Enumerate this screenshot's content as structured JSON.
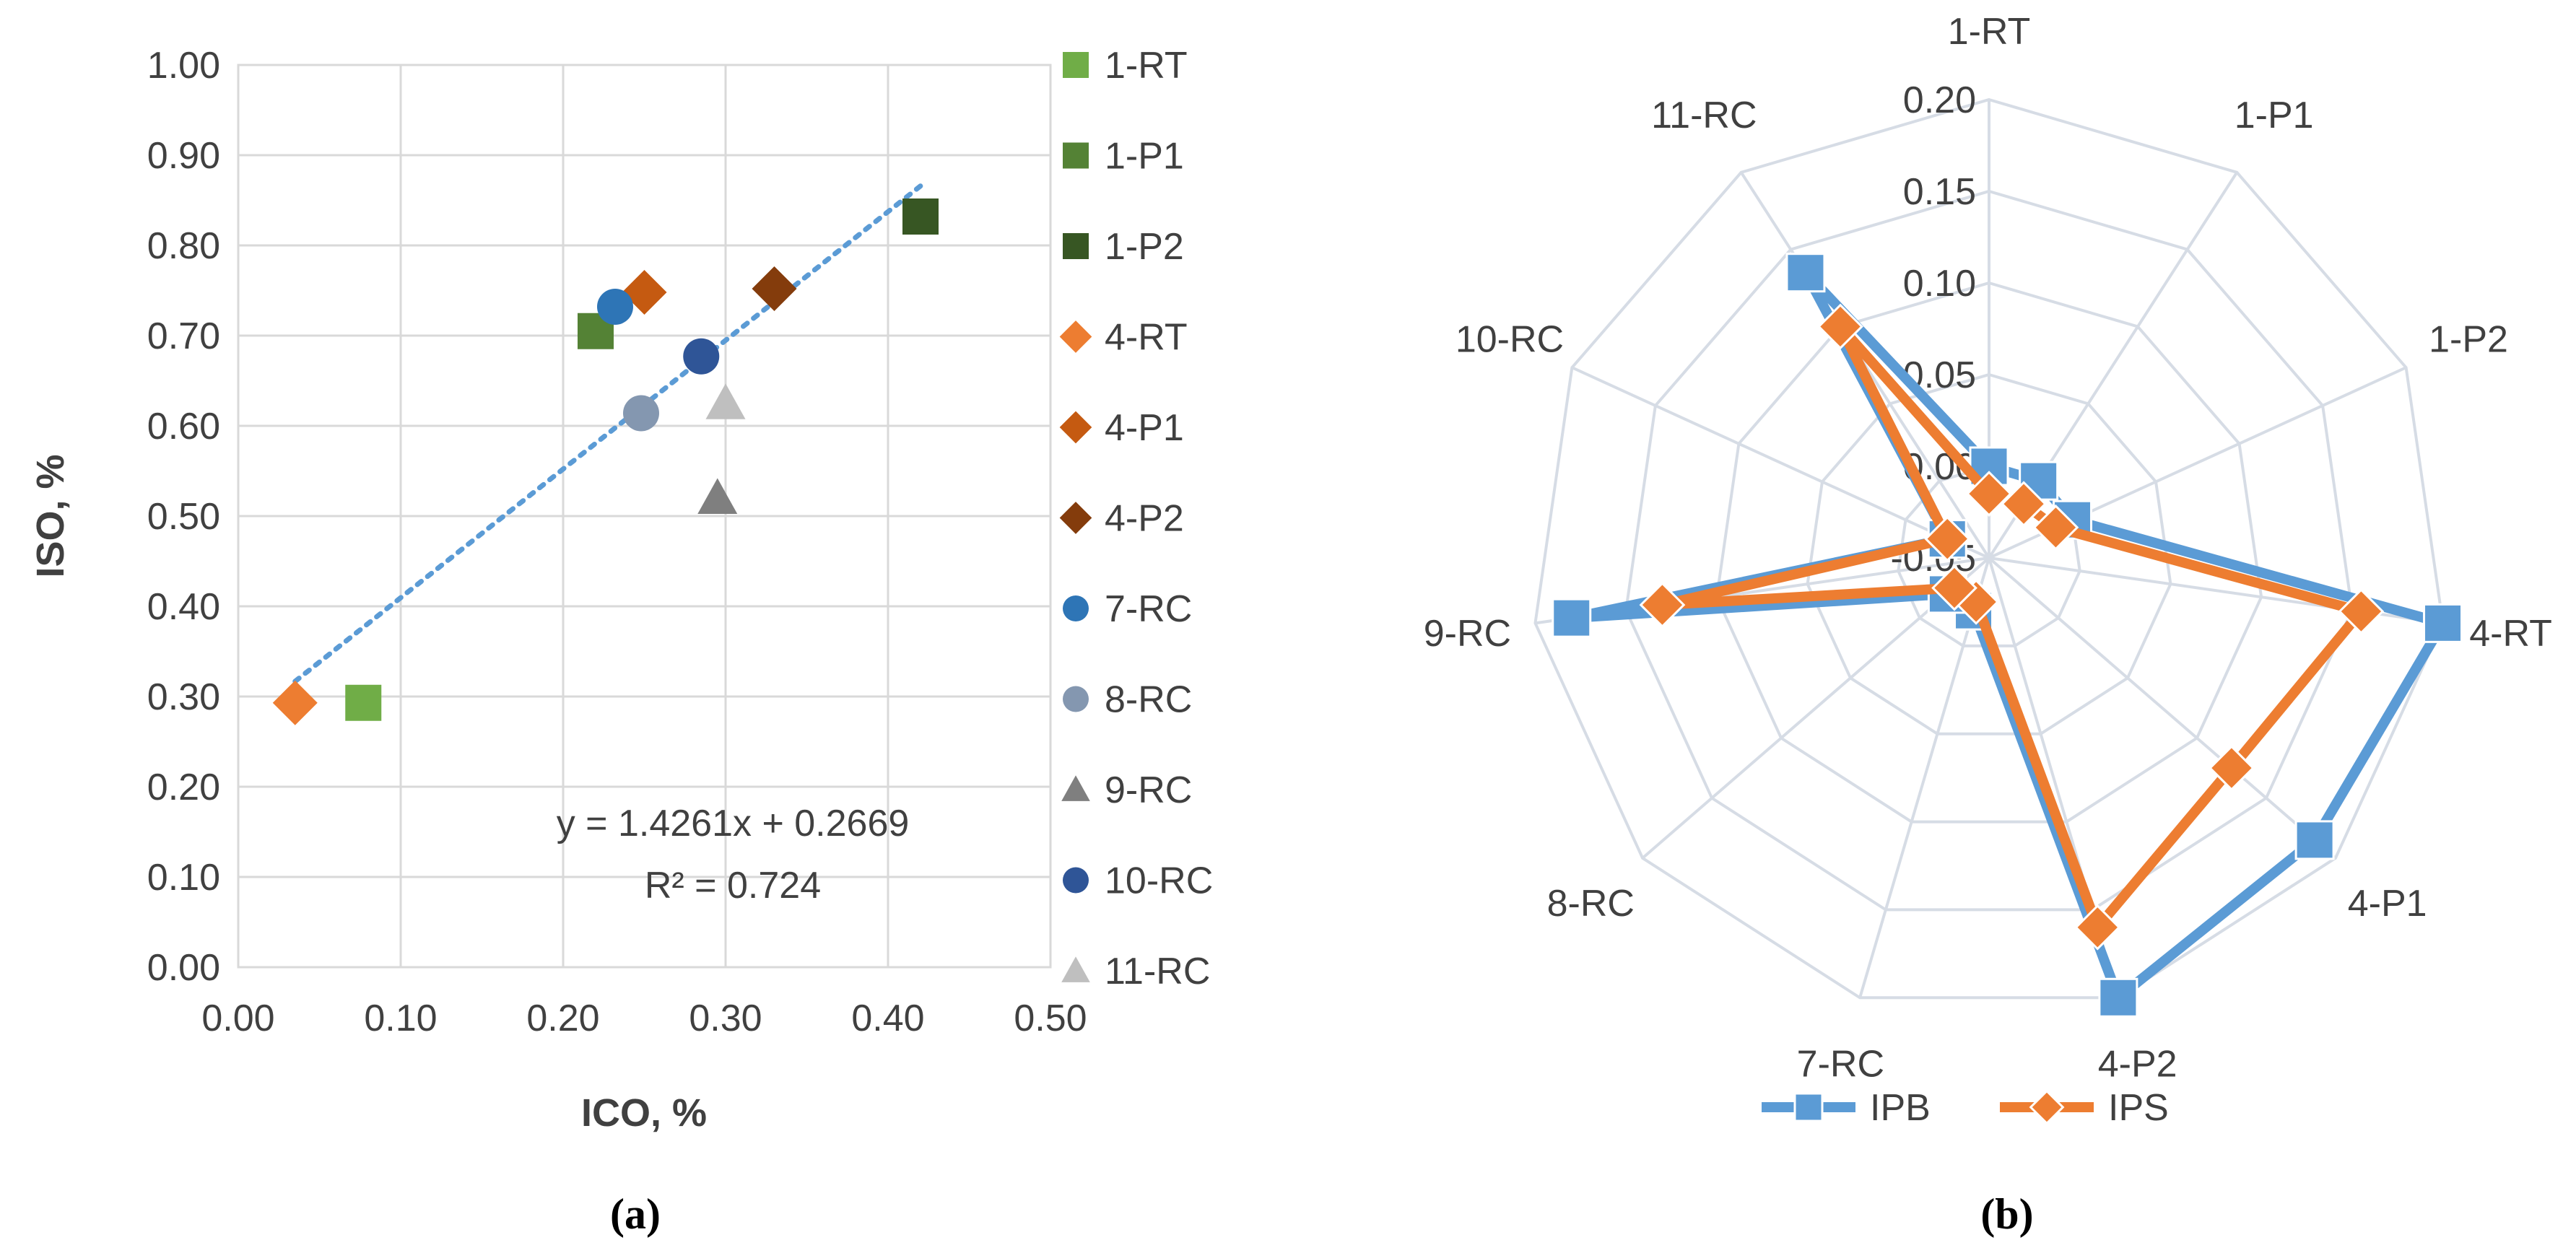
{
  "colors": {
    "c_1_RT": "#70ad47",
    "c_1_P1": "#548235",
    "c_1_P2": "#375623",
    "c_4_RT": "#ed7d31",
    "c_4_P1": "#c55a11",
    "c_4_P2": "#843c0c",
    "c_7_RC": "#2e75b6",
    "c_8_RC": "#8497b0",
    "c_9_RC": "#7f7f7f",
    "c_10_RC": "#2f5597",
    "c_11_RC": "#bfbfbf",
    "trendline": "#5b9bd5",
    "IPB": "#5b9bd5",
    "IPS": "#ed7d31",
    "grid": "#d9d9d9",
    "radar_grid": "#d6dce5"
  },
  "chart_data": [
    {
      "type": "scatter",
      "panel_label": "(a)",
      "xlabel": "ICO, %",
      "ylabel": "ISO, %",
      "xlim": [
        0.0,
        0.5
      ],
      "ylim": [
        0.0,
        1.0
      ],
      "x_ticks": [
        "0.00",
        "0.10",
        "0.20",
        "0.30",
        "0.40",
        "0.50"
      ],
      "y_ticks": [
        "0.00",
        "0.10",
        "0.20",
        "0.30",
        "0.40",
        "0.50",
        "0.60",
        "0.70",
        "0.80",
        "0.90",
        "1.00"
      ],
      "grid": "vertical and horizontal",
      "legend_position": "right",
      "series": [
        {
          "name": "1-RT",
          "marker": "square",
          "color_key": "c_1_RT",
          "x": 0.077,
          "y": 0.293
        },
        {
          "name": "1-P1",
          "marker": "square",
          "color_key": "c_1_P1",
          "x": 0.22,
          "y": 0.705
        },
        {
          "name": "1-P2",
          "marker": "square",
          "color_key": "c_1_P2",
          "x": 0.42,
          "y": 0.832
        },
        {
          "name": "4-RT",
          "marker": "diamond",
          "color_key": "c_4_RT",
          "x": 0.035,
          "y": 0.293
        },
        {
          "name": "4-P1",
          "marker": "diamond",
          "color_key": "c_4_P1",
          "x": 0.25,
          "y": 0.748
        },
        {
          "name": "4-P2",
          "marker": "diamond",
          "color_key": "c_4_P2",
          "x": 0.33,
          "y": 0.752
        },
        {
          "name": "7-RC",
          "marker": "circle",
          "color_key": "c_7_RC",
          "x": 0.232,
          "y": 0.732
        },
        {
          "name": "8-RC",
          "marker": "circle",
          "color_key": "c_8_RC",
          "x": 0.248,
          "y": 0.614
        },
        {
          "name": "9-RC",
          "marker": "triangle",
          "color_key": "c_9_RC",
          "x": 0.295,
          "y": 0.52
        },
        {
          "name": "10-RC",
          "marker": "circle",
          "color_key": "c_10_RC",
          "x": 0.285,
          "y": 0.677
        },
        {
          "name": "11-RC",
          "marker": "triangle",
          "color_key": "c_11_RC",
          "x": 0.3,
          "y": 0.625
        }
      ],
      "trendline": {
        "type": "linear",
        "slope": 1.4261,
        "intercept": 0.2669,
        "x_range": [
          0.035,
          0.42
        ],
        "equation": "y = 1.4261x + 0.2669",
        "r_squared": "R² = 0.724"
      }
    },
    {
      "type": "radar",
      "panel_label": "(b)",
      "categories": [
        "1-RT",
        "1-P1",
        "1-P2",
        "4-RT",
        "4-P1",
        "4-P2",
        "7-RC",
        "8-RC",
        "9-RC",
        "10-RC",
        "11-RC"
      ],
      "rlim": [
        -0.05,
        0.2
      ],
      "r_ticks": [
        "-0.05",
        "0.00",
        "0.05",
        "0.10",
        "0.15",
        "0.20"
      ],
      "legend_position": "bottom",
      "series": [
        {
          "name": "IPB",
          "marker": "square",
          "color_key": "IPB",
          "values": [
            0.0,
            0.0,
            0.0,
            0.2,
            0.185,
            0.2,
            -0.02,
            -0.02,
            0.18,
            -0.025,
            0.135
          ]
        },
        {
          "name": "IPS",
          "marker": "diamond",
          "color_key": "IPS",
          "values": [
            -0.015,
            -0.015,
            -0.01,
            0.155,
            0.125,
            0.16,
            -0.025,
            -0.025,
            0.13,
            -0.025,
            0.1
          ]
        }
      ]
    }
  ]
}
